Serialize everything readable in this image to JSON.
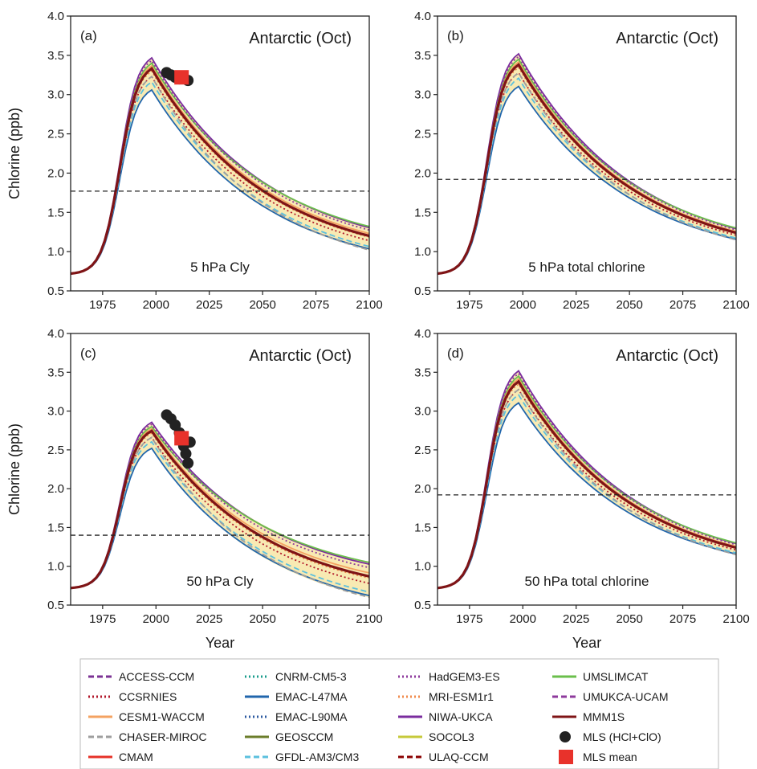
{
  "chart_data": [
    {
      "type": "line",
      "panel_label": "(a)",
      "region_label": "Antarctic (Oct)",
      "description": "5 hPa Cly",
      "ylabel": "Chlorine (ppb)",
      "xlabel": "",
      "xlim": [
        1960,
        2100
      ],
      "ylim": [
        0.5,
        4.0
      ],
      "xticks": [
        1975,
        2000,
        2025,
        2050,
        2075,
        2100
      ],
      "yticks": [
        "0.5",
        "1.0",
        "1.5",
        "2.0",
        "2.5",
        "3.0",
        "3.5",
        "4.0"
      ],
      "reference_line": 1.77,
      "peak": 3.4,
      "end_value": 1.22,
      "spread_end": [
        1.02,
        1.32
      ],
      "low_models": [
        "EMAC-L47MA",
        "EMAC-L90MA",
        "GFDL-AM3/CM3"
      ],
      "mls_points": [
        [
          2005,
          3.28
        ],
        [
          2007,
          3.25
        ],
        [
          2009,
          3.22
        ],
        [
          2011,
          3.2
        ],
        [
          2013,
          3.22
        ],
        [
          2015,
          3.18
        ]
      ],
      "mls_mean": [
        2012,
        3.22
      ]
    },
    {
      "type": "line",
      "panel_label": "(b)",
      "region_label": "Antarctic (Oct)",
      "description": "5 hPa total chlorine",
      "ylabel": "",
      "xlabel": "",
      "xlim": [
        1960,
        2100
      ],
      "ylim": [
        0.5,
        4.0
      ],
      "xticks": [
        1975,
        2000,
        2025,
        2050,
        2075,
        2100
      ],
      "yticks": [
        "0.5",
        "1.0",
        "1.5",
        "2.0",
        "2.5",
        "3.0",
        "3.5",
        "4.0"
      ],
      "reference_line": 1.92,
      "peak": 3.45,
      "end_value": 1.25,
      "spread_end": [
        1.15,
        1.3
      ],
      "low_models": [
        "EMAC-L47MA"
      ],
      "mls_points": [],
      "mls_mean": null
    },
    {
      "type": "line",
      "panel_label": "(c)",
      "region_label": "Antarctic (Oct)",
      "description": "50 hPa Cly",
      "ylabel": "Chlorine (ppb)",
      "xlabel": "Year",
      "xlim": [
        1960,
        2100
      ],
      "ylim": [
        0.5,
        4.0
      ],
      "xticks": [
        1975,
        2000,
        2025,
        2050,
        2075,
        2100
      ],
      "yticks": [
        "0.5",
        "1.0",
        "1.5",
        "2.0",
        "2.5",
        "3.0",
        "3.5",
        "4.0"
      ],
      "reference_line": 1.4,
      "peak": 2.8,
      "end_value": 0.92,
      "spread_end": [
        0.6,
        1.05
      ],
      "low_models": [
        "EMAC-L47MA",
        "EMAC-L90MA",
        "CCSRNIES"
      ],
      "mls_points": [
        [
          2005,
          2.95
        ],
        [
          2007,
          2.9
        ],
        [
          2009,
          2.82
        ],
        [
          2011,
          2.72
        ],
        [
          2013,
          2.55
        ],
        [
          2014,
          2.45
        ],
        [
          2015,
          2.33
        ],
        [
          2016,
          2.6
        ]
      ],
      "mls_mean": [
        2012,
        2.65
      ]
    },
    {
      "type": "line",
      "panel_label": "(d)",
      "region_label": "Antarctic (Oct)",
      "description": "50 hPa total chlorine",
      "ylabel": "",
      "xlabel": "Year",
      "xlim": [
        1960,
        2100
      ],
      "ylim": [
        0.5,
        4.0
      ],
      "xticks": [
        1975,
        2000,
        2025,
        2050,
        2075,
        2100
      ],
      "yticks": [
        "0.5",
        "1.0",
        "1.5",
        "2.0",
        "2.5",
        "3.0",
        "3.5",
        "4.0"
      ],
      "reference_line": 1.92,
      "peak": 3.45,
      "end_value": 1.25,
      "spread_end": [
        1.15,
        1.3
      ],
      "low_models": [
        "EMAC-L47MA"
      ],
      "mls_points": [],
      "mls_mean": null
    }
  ],
  "legend": [
    {
      "name": "ACCESS-CCM",
      "color": "#7b3294",
      "style": "dash"
    },
    {
      "name": "CCSRNIES",
      "color": "#b2182b",
      "style": "dot"
    },
    {
      "name": "CESM1-WACCM",
      "color": "#f4a261",
      "style": "solid"
    },
    {
      "name": "CHASER-MIROC",
      "color": "#9e9e9e",
      "style": "dash"
    },
    {
      "name": "CMAM",
      "color": "#e63228",
      "style": "solid"
    },
    {
      "name": "CNRM-CM5-3",
      "color": "#1a9c8c",
      "style": "dot"
    },
    {
      "name": "EMAC-L47MA",
      "color": "#2166ac",
      "style": "solid"
    },
    {
      "name": "EMAC-L90MA",
      "color": "#2c5aa0",
      "style": "dot"
    },
    {
      "name": "GEOSCCM",
      "color": "#6b7d2a",
      "style": "solid"
    },
    {
      "name": "GFDL-AM3/CM3",
      "color": "#5bc0de",
      "style": "dash"
    },
    {
      "name": "HadGEM3-ES",
      "color": "#8e3a9c",
      "style": "dot"
    },
    {
      "name": "MRI-ESM1r1",
      "color": "#f08a4b",
      "style": "dot"
    },
    {
      "name": "NIWA-UKCA",
      "color": "#7a2c9e",
      "style": "solid"
    },
    {
      "name": "SOCOL3",
      "color": "#c6c93a",
      "style": "solid"
    },
    {
      "name": "ULAQ-CCM",
      "color": "#8b0000",
      "style": "dash"
    },
    {
      "name": "UMSLIMCAT",
      "color": "#6abf4b",
      "style": "solid"
    },
    {
      "name": "UMUKCA-UCAM",
      "color": "#8e3a9c",
      "style": "dash"
    },
    {
      "name": "MMM1S",
      "color": "#7f1416",
      "style": "solid"
    },
    {
      "name": "MLS (HCl+ClO)",
      "color": "#222222",
      "style": "circle"
    },
    {
      "name": "MLS mean",
      "color": "#e8322b",
      "style": "square"
    }
  ]
}
